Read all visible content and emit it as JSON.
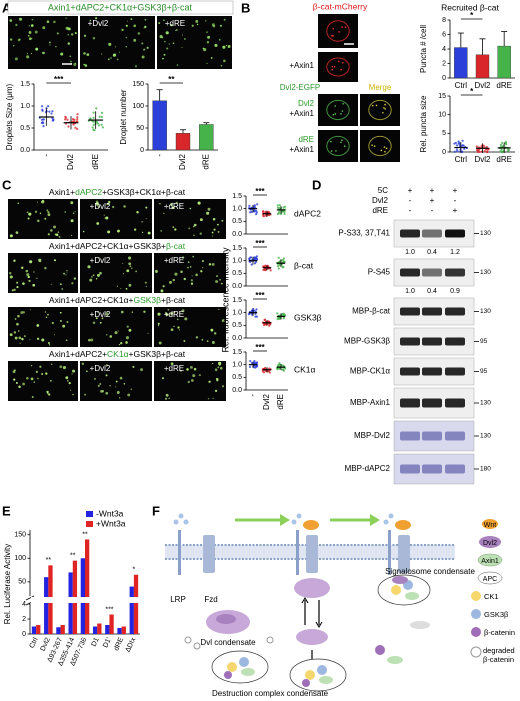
{
  "A": {
    "label": "A",
    "title": "Axin1+dAPC2+CK1α+GSK3β+β-cat",
    "image_labels": [
      "+Dvl2",
      "+dRE"
    ],
    "size": {
      "ylabel": "Droplets Size (μm)",
      "categories": [
        "-",
        "Dvl2",
        "dRE"
      ],
      "colors": [
        "#2b3fd9",
        "#d8262a",
        "#45b34a"
      ],
      "values": [
        0.75,
        0.62,
        0.68
      ],
      "spread": [
        0.2,
        0.15,
        0.2
      ],
      "ylim": [
        0,
        1.5
      ],
      "yticks": [
        {
          "value": 0,
          "label": "0.0"
        },
        {
          "value": 0.5,
          "label": "0.5"
        },
        {
          "value": 1,
          "label": "1.0"
        },
        {
          "value": 1.5,
          "label": "1.5"
        }
      ],
      "annotation": "***"
    },
    "number": {
      "ylabel": "Droplet number",
      "categories": [
        "-",
        "Dvl2",
        "dRE"
      ],
      "colors": [
        "#2b3fd9",
        "#d8262a",
        "#45b34a"
      ],
      "values": [
        112,
        38,
        58
      ],
      "errors": [
        25,
        8,
        4
      ],
      "ylim": [
        0,
        150
      ],
      "yticks": [
        0,
        50,
        100,
        150
      ],
      "annotation": "**"
    }
  },
  "B": {
    "label": "B",
    "channel": "β-cat-mCherry",
    "row_labels": [
      "+Axin1",
      "Dvl2-EGFP",
      "Dvl2",
      "+Axin1",
      "dRE",
      "+Axin1"
    ],
    "merge": "Merge",
    "chart_title": "Recruited β-cat",
    "count": {
      "ylabel": "Puncta # /cell",
      "categories": [
        "Ctrl",
        "Dvl2",
        "dRE"
      ],
      "colors": [
        "#2b3fd9",
        "#d8262a",
        "#45b34a"
      ],
      "values": [
        4.2,
        3.2,
        4.4
      ],
      "errors": [
        2,
        2.2,
        2
      ],
      "ylim": [
        0,
        8
      ],
      "yticks": [
        0,
        2,
        4,
        6,
        8
      ],
      "annotation": "*"
    },
    "size": {
      "ylabel": "Rel. puncta size",
      "categories": [
        "Ctrl",
        "Dvl2",
        "dRE"
      ],
      "colors": [
        "#2b3fd9",
        "#d8262a",
        "#45b34a"
      ],
      "values": [
        1.2,
        1,
        1.1
      ],
      "spread": [
        1.5,
        1.3,
        1.4
      ],
      "ylim": [
        0,
        15
      ],
      "yticks": [
        0,
        5,
        10,
        15
      ],
      "annotation": "*"
    }
  },
  "C": {
    "label": "C",
    "image_labels": [
      "+Dvl2",
      "+dRE"
    ],
    "highlight": 1,
    "rows": [
      [
        "Axin1+",
        "dAPC2",
        "+GSK3β+CK1α+β-cat"
      ],
      [
        "Axin1+dAPC2+CK1α+GSK3β+",
        "β-cat"
      ],
      [
        "Axin1+dAPC2+CK1α+",
        "GSK3β",
        "+β-cat"
      ],
      [
        "Axin1+dAPC2+",
        "CK1α",
        "+GSK3β+β-cat"
      ]
    ],
    "plot": {
      "ylabel": "Rel. fluorescence intensity",
      "categories": [
        "-",
        "Dvl2",
        "dRE"
      ],
      "colors": [
        "#2b3fd9",
        "#d8262a",
        "#45b34a"
      ],
      "ylim": [
        0,
        1.5
      ],
      "yticks": [
        {
          "value": 0,
          "label": "0.0"
        },
        {
          "value": 0.5,
          "label": "0.5"
        },
        {
          "value": 1,
          "label": "1.0"
        },
        {
          "value": 1.5,
          "label": "1.5"
        }
      ],
      "annotation": "***"
    },
    "series": [
      {
        "name": "dAPC2",
        "values": [
          1,
          0.8,
          0.95
        ],
        "spread": [
          0.15,
          0.12,
          0.15
        ]
      },
      {
        "name": "β-cat",
        "values": [
          1,
          0.72,
          0.9
        ],
        "spread": [
          0.15,
          0.1,
          0.15
        ]
      },
      {
        "name": "GSK3β",
        "values": [
          1,
          0.6,
          0.85
        ],
        "spread": [
          0.12,
          0.1,
          0.12
        ]
      },
      {
        "name": "CK1α",
        "values": [
          1,
          0.8,
          0.9
        ],
        "spread": [
          0.12,
          0.1,
          0.12
        ]
      }
    ]
  },
  "D": {
    "label": "D",
    "header": [
      {
        "label": "5C",
        "signs": [
          "+",
          "+",
          "+"
        ]
      },
      {
        "label": "Dvl2",
        "signs": [
          "-",
          "+",
          "-"
        ]
      },
      {
        "label": "dRE",
        "signs": [
          "-",
          "-",
          "+"
        ]
      }
    ],
    "blots": [
      {
        "label": "P-S33, 37,T41",
        "mw": "130",
        "quant": [
          "1.0",
          "0.4",
          "1.2"
        ]
      },
      {
        "label": "P-S45",
        "mw": "130",
        "quant": [
          "1.0",
          "0.4",
          "0.9"
        ]
      },
      {
        "label": "MBP-β-cat",
        "mw": "130"
      },
      {
        "label": "MBP-GSK3β",
        "mw": "95"
      },
      {
        "label": "MBP-CK1α",
        "mw": "95"
      },
      {
        "label": "MBP-Axin1",
        "mw": "130"
      },
      {
        "label": "MBP-Dvl2",
        "mw": "130"
      },
      {
        "label": "MBP-dAPC2",
        "mw": "180"
      }
    ]
  },
  "E": {
    "label": "E",
    "ylabel": "Rel. Luciferase Activity",
    "categories": [
      "Ctrl",
      "Dvl2",
      "Δ93-267",
      "Δ355-414",
      "Δ507-736",
      "D1",
      "D1'",
      "dRE",
      "ΔDIx"
    ],
    "series": [
      {
        "name": "-Wnt3a",
        "color": "#2323e0",
        "values": [
          1,
          60,
          0.9,
          70,
          100,
          1,
          1.2,
          0.8,
          40
        ]
      },
      {
        "name": "+Wnt3a",
        "color": "#e02323",
        "values": [
          1.2,
          85,
          1.2,
          95,
          140,
          1.4,
          2.6,
          1,
          65
        ]
      }
    ],
    "ylim_lower": [
      0,
      4
    ],
    "yticks_lower": [
      0,
      2,
      4
    ],
    "ylim_upper": [
      20,
      160
    ],
    "yticks_upper": [
      50,
      100,
      150
    ],
    "annotations": [
      null,
      "**",
      null,
      "**",
      "**",
      null,
      "***",
      null,
      "*"
    ]
  },
  "F": {
    "label": "F",
    "lrp": "LRP",
    "fzd": "Fzd",
    "dvl_condensate": "Dvl condensate",
    "destruction": "Destruction complex condensate",
    "signalosome": "Signalosome condensate",
    "legend": [
      "Wnt",
      "Dvl2",
      "Axin1",
      "APC",
      "CK1",
      "GSK3β",
      "β-catenin",
      "degraded β-catenin"
    ]
  }
}
